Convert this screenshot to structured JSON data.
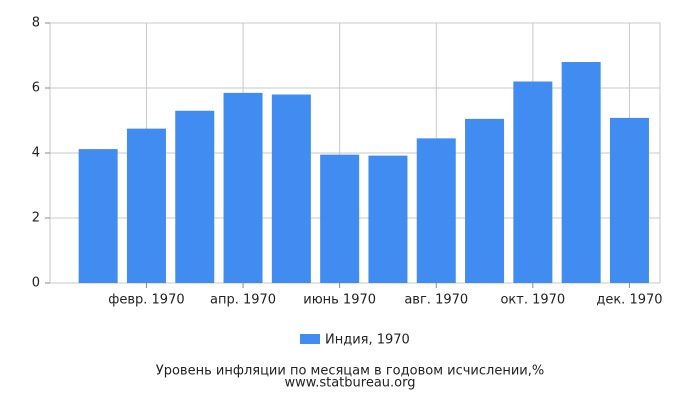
{
  "chart_data": {
    "type": "bar",
    "title": "Уровень инфляции по месяцам в годовом исчислении,%",
    "source": "www.statbureau.org",
    "categories": [
      null,
      "февр. 1970",
      null,
      "апр. 1970",
      null,
      "июнь 1970",
      null,
      "авг. 1970",
      null,
      "окт. 1970",
      null,
      "дек. 1970"
    ],
    "series": [
      {
        "name": "Индия, 1970",
        "color": "#418cf0",
        "values": [
          4.12,
          4.75,
          5.3,
          5.85,
          5.8,
          3.95,
          3.92,
          4.45,
          5.05,
          6.2,
          6.8,
          5.08
        ]
      }
    ],
    "ylim": [
      0,
      8
    ],
    "yticks": [
      0,
      2,
      4,
      6,
      8
    ],
    "grid": true
  }
}
